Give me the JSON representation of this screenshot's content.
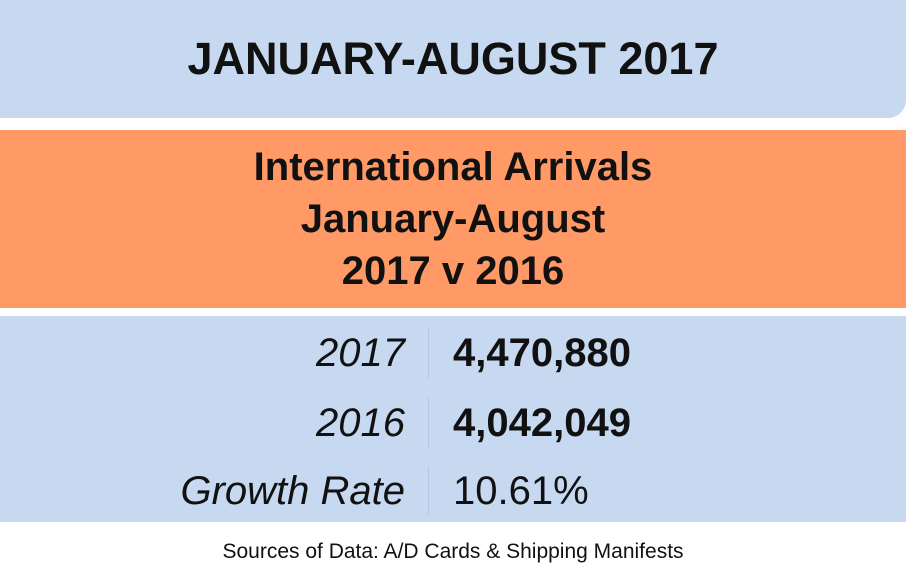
{
  "header": {
    "title": "JANUARY-AUGUST 2017"
  },
  "table": {
    "title": [
      "International Arrivals",
      "January-August",
      "2017 v 2016"
    ],
    "rows": [
      [
        "2017",
        "4,470,880"
      ],
      [
        "2016",
        "4,042,049"
      ],
      [
        "Growth Rate",
        "10.61%"
      ]
    ]
  },
  "footer": {
    "source": "Sources of Data: A/D Cards & Shipping Manifests"
  }
}
